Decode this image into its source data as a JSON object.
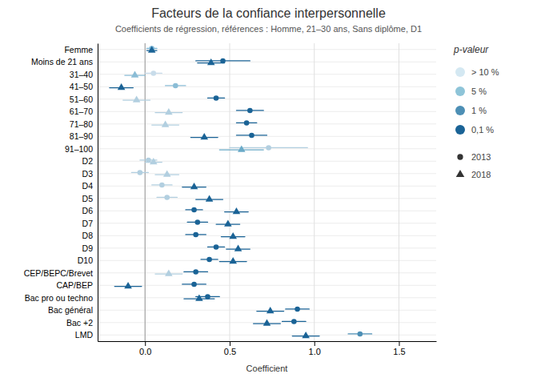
{
  "chart_data": {
    "type": "dot",
    "title": "Facteurs de la confiance interpersonnelle",
    "subtitle": "Coefficients de régression, références : Homme, 21–30 ans, Sans diplôme, D1",
    "x_label": "Coefficient",
    "xlim": [
      -0.28,
      1.72
    ],
    "xticks": [
      {
        "value": 0.0,
        "label": "0.0"
      },
      0.5,
      {
        "value": 1.0,
        "label": "1.0"
      },
      1.5
    ],
    "reference_line": 0,
    "grid": true,
    "legend": "right",
    "categories": [
      "Femme",
      "Moins de 21 ans",
      "31–40",
      "41–50",
      "51–60",
      "61–70",
      "71–80",
      "81–90",
      "91–100",
      "D2",
      "D3",
      "D4",
      "D5",
      "D6",
      "D7",
      "D8",
      "D9",
      "D10",
      "CEP/BEPC/Brevet",
      "CAP/BEP",
      "Bac pro ou techno",
      "Bac général",
      "Bac +2",
      "LMD"
    ],
    "series": [
      {
        "name": "2013",
        "marker": "circle",
        "color": "#333333",
        "values": [
          0.04,
          0.46,
          0.05,
          0.18,
          0.42,
          0.62,
          0.6,
          0.63,
          0.73,
          0.02,
          -0.03,
          0.1,
          0.13,
          0.29,
          0.31,
          0.3,
          0.42,
          0.38,
          0.3,
          0.29,
          0.37,
          0.9,
          0.88,
          1.27
        ],
        "ci_low": [
          0.01,
          0.3,
          0.0,
          0.12,
          0.37,
          0.54,
          0.54,
          0.54,
          0.5,
          -0.03,
          -0.08,
          0.04,
          0.07,
          0.24,
          0.25,
          0.24,
          0.37,
          0.33,
          0.23,
          0.22,
          0.3,
          0.83,
          0.81,
          1.2
        ],
        "ci_high": [
          0.07,
          0.62,
          0.1,
          0.24,
          0.47,
          0.7,
          0.66,
          0.72,
          0.96,
          0.07,
          0.02,
          0.16,
          0.19,
          0.34,
          0.37,
          0.36,
          0.47,
          0.43,
          0.37,
          0.36,
          0.44,
          0.97,
          0.95,
          1.34
        ],
        "colors": [
          "#7db8d8",
          "#1a6396",
          "#c8dcea",
          "#8bbdd6",
          "#1a6396",
          "#1a6396",
          "#1a6396",
          "#1a6396",
          "#b2cfe0",
          "#b2cfe0",
          "#b2cfe0",
          "#b2cfe0",
          "#b2cfe0",
          "#1a6396",
          "#1a6396",
          "#1a6396",
          "#1a6396",
          "#1a6396",
          "#1a6396",
          "#1a6396",
          "#1a6396",
          "#1a6396",
          "#1a6396",
          "#4d8fb5"
        ]
      },
      {
        "name": "2018",
        "marker": "triangle",
        "color": "#333333",
        "values": [
          0.04,
          0.39,
          -0.06,
          -0.14,
          -0.05,
          0.14,
          0.12,
          0.35,
          0.57,
          0.05,
          0.13,
          0.29,
          0.38,
          0.54,
          0.49,
          0.52,
          0.55,
          0.52,
          0.14,
          -0.1,
          0.32,
          0.74,
          0.72,
          0.95
        ],
        "ci_low": [
          0.01,
          0.31,
          -0.12,
          -0.21,
          -0.13,
          0.06,
          0.04,
          0.27,
          0.44,
          0.0,
          0.06,
          0.22,
          0.3,
          0.47,
          0.42,
          0.45,
          0.48,
          0.44,
          0.06,
          -0.18,
          0.23,
          0.66,
          0.64,
          0.87
        ],
        "ci_high": [
          0.07,
          0.47,
          0.0,
          -0.07,
          0.03,
          0.22,
          0.2,
          0.43,
          0.7,
          0.1,
          0.2,
          0.36,
          0.46,
          0.61,
          0.56,
          0.59,
          0.62,
          0.6,
          0.22,
          -0.02,
          0.41,
          0.82,
          0.8,
          1.03
        ],
        "colors": [
          "#1a6396",
          "#1a6396",
          "#8bbdd6",
          "#1a6396",
          "#b2cfe0",
          "#b2cfe0",
          "#b2cfe0",
          "#1a6396",
          "#6aaac8",
          "#b2cfe0",
          "#b2cfe0",
          "#1a6396",
          "#1a6396",
          "#1a6396",
          "#1a6396",
          "#1a6396",
          "#1a6396",
          "#1a6396",
          "#b2cfe0",
          "#1a6396",
          "#1a6396",
          "#1a6396",
          "#1a6396",
          "#1a6396"
        ]
      }
    ],
    "color_legend": {
      "title": "p-valeur",
      "labels": [
        "> 10 %",
        "5 %",
        "1 %",
        "0,1 %"
      ],
      "colors": [
        "#d4e8f2",
        "#8ec4d8",
        "#4d8fb5",
        "#1a6396"
      ]
    }
  }
}
